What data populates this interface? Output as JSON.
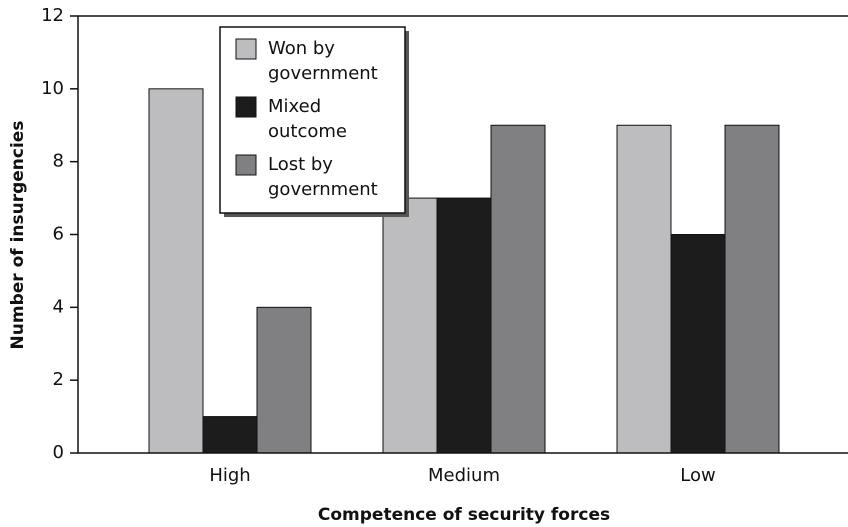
{
  "chart_data": {
    "type": "bar",
    "xlabel": "Competence of security forces",
    "ylabel": "Number of insurgencies",
    "categories": [
      "High",
      "Medium",
      "Low"
    ],
    "series": [
      {
        "name": "Won by government",
        "color": "#bdbdc0",
        "values": [
          10,
          7,
          9
        ]
      },
      {
        "name": "Mixed outcome",
        "color": "#1c1c1c",
        "values": [
          1,
          7,
          6
        ]
      },
      {
        "name": "Lost by government",
        "color": "#808083",
        "values": [
          4,
          9,
          9
        ]
      }
    ],
    "ylim": [
      0,
      12
    ],
    "yticks": [
      0,
      2,
      4,
      6,
      8,
      10,
      12
    ],
    "grid": false,
    "legend": "upper left"
  }
}
